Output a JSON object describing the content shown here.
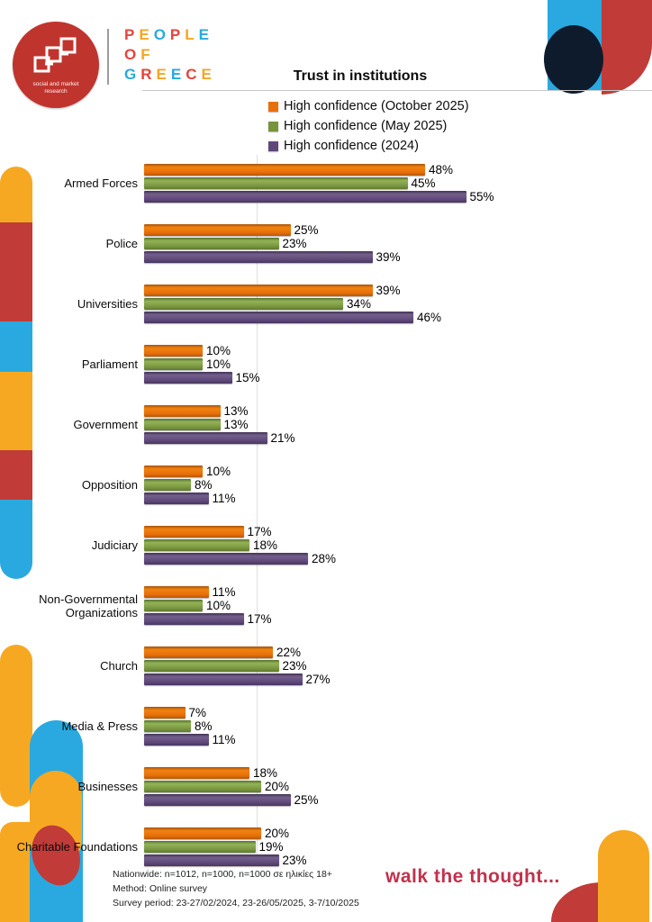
{
  "header": {
    "logo_text_line1": "social and market",
    "logo_text_line2": "research",
    "brand_lines": [
      "PEOPLE",
      "OF",
      "GREECE"
    ],
    "title": "Trust in institutions"
  },
  "legend": [
    {
      "label": "High confidence (October 2025)",
      "color": "#e8700b"
    },
    {
      "label": "High confidence (May 2025)",
      "color": "#77933c"
    },
    {
      "label": "High confidence (2024)",
      "color": "#5f497a"
    }
  ],
  "chart_data": {
    "type": "bar",
    "orientation": "horizontal",
    "title": "Trust in institutions",
    "categories": [
      "Armed Forces",
      "Police",
      "Universities",
      "Parliament",
      "Government",
      "Opposition",
      "Judiciary",
      "Non-Governmental Organizations",
      "Church",
      "Media & Press",
      "Businesses",
      "Charitable Foundations"
    ],
    "series": [
      {
        "name": "High confidence (October 2025)",
        "color": "#e8700b",
        "values": [
          48,
          25,
          39,
          10,
          13,
          10,
          17,
          11,
          22,
          7,
          18,
          20
        ]
      },
      {
        "name": "High confidence (May 2025)",
        "color": "#77933c",
        "values": [
          45,
          23,
          34,
          10,
          13,
          8,
          18,
          10,
          23,
          8,
          20,
          19
        ]
      },
      {
        "name": "High confidence (2024)",
        "color": "#5f497a",
        "values": [
          55,
          39,
          46,
          15,
          21,
          11,
          28,
          17,
          27,
          11,
          25,
          23
        ]
      }
    ],
    "value_suffix": "%",
    "xlim": [
      0,
      60
    ],
    "grid": false,
    "data_labels": true,
    "legend_position": "top"
  },
  "footer": {
    "note_line1": "Nationwide: n=1012, n=1000, n=1000 σε ηλικίες 18+",
    "note_line2": "Method: Online survey",
    "note_line3": "Survey period:  23-27/02/2024, 23-26/05/2025, 3-7/10/2025",
    "slogan": "walk the thought..."
  },
  "colors": {
    "deco_orange": "#f6a823",
    "deco_red": "#c13b38",
    "deco_blue": "#2aa9e0",
    "deco_navy": "#0e1b2c",
    "logo_red": "#c0342e",
    "slogan_red": "#c2314b",
    "brand_palette": [
      "#e8433b",
      "#f5a623",
      "#2aa9e0"
    ],
    "left_strip_segments": [
      "#f6a823",
      "#c13b38",
      "#2aa9e0",
      "#f6a823",
      "#c13b38",
      "#2aa9e0"
    ],
    "left_strip_heights": [
      62,
      110,
      56,
      87,
      55,
      88
    ]
  }
}
